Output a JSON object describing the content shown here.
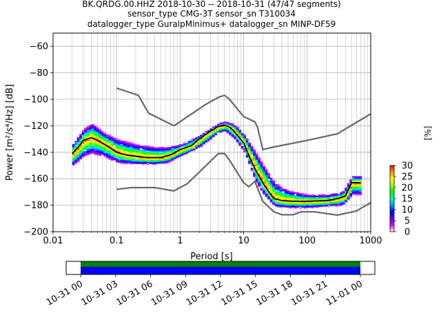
{
  "chart_data": {
    "type": "heatmap",
    "title_lines": [
      "BK.QRDG.00.HHZ   2018-10-30 -- 2018-10-31  (47/47 segments)",
      "sensor_type CMG-3T sensor_sn T310034",
      "datalogger_type GuralpMinimus+ datalogger_sn MINP-DF59"
    ],
    "xlabel": "Period [s]",
    "ylabel": "Power [m²/s⁴/Hz] [dB]",
    "x_scale": "log",
    "xlim": [
      0.01,
      1000
    ],
    "ylim": [
      -200,
      -50
    ],
    "x_ticks": [
      {
        "value": 0.01,
        "label": "0.01"
      },
      {
        "value": 0.1,
        "label": "0.1"
      },
      {
        "value": 1,
        "label": "1"
      },
      {
        "value": 10,
        "label": "10"
      },
      {
        "value": 100,
        "label": "100"
      },
      {
        "value": 1000,
        "label": "1000"
      }
    ],
    "y_ticks": [
      {
        "value": -60,
        "label": "−60"
      },
      {
        "value": -80,
        "label": "−80"
      },
      {
        "value": -100,
        "label": "−100"
      },
      {
        "value": -120,
        "label": "−120"
      },
      {
        "value": -140,
        "label": "−140"
      },
      {
        "value": -160,
        "label": "−160"
      },
      {
        "value": -180,
        "label": "−180"
      },
      {
        "value": -200,
        "label": "−200"
      }
    ],
    "grid": true,
    "noise_models": [
      {
        "points": [
          [
            0.1,
            -91.5
          ],
          [
            0.22,
            -97
          ],
          [
            0.32,
            -110.5
          ],
          [
            0.8,
            -120
          ],
          [
            2.5,
            -104
          ],
          [
            4.0,
            -98.5
          ],
          [
            5.0,
            -97
          ],
          [
            6.0,
            -100
          ],
          [
            7.0,
            -104
          ],
          [
            10.0,
            -113
          ],
          [
            15.0,
            -117
          ],
          [
            16.5,
            -121
          ],
          [
            20.0,
            -138
          ],
          [
            30.0,
            -136
          ],
          [
            100.0,
            -131
          ],
          [
            300.0,
            -126
          ],
          [
            1000.0,
            -111
          ]
        ]
      },
      {
        "points": [
          [
            0.1,
            -168
          ],
          [
            0.17,
            -166.7
          ],
          [
            0.4,
            -166.7
          ],
          [
            0.8,
            -169.2
          ],
          [
            1.3,
            -163.7
          ],
          [
            4.0,
            -141
          ],
          [
            5.0,
            -141
          ],
          [
            6.0,
            -146
          ],
          [
            10.0,
            -163
          ],
          [
            12.0,
            -166
          ],
          [
            15.0,
            -162
          ],
          [
            20.0,
            -177
          ],
          [
            30.0,
            -185
          ],
          [
            40.0,
            -187.2
          ],
          [
            60.0,
            -187.2
          ],
          [
            80.0,
            -185
          ],
          [
            130.0,
            -185
          ],
          [
            300.0,
            -187.5
          ],
          [
            600.0,
            -184.3
          ],
          [
            1000.0,
            -178
          ]
        ]
      }
    ],
    "mode_curve": [
      [
        0.02,
        -141
      ],
      [
        0.025,
        -136
      ],
      [
        0.03,
        -131
      ],
      [
        0.04,
        -129
      ],
      [
        0.05,
        -131
      ],
      [
        0.07,
        -135
      ],
      [
        0.1,
        -140
      ],
      [
        0.14,
        -142
      ],
      [
        0.2,
        -143
      ],
      [
        0.3,
        -144
      ],
      [
        0.5,
        -144
      ],
      [
        0.7,
        -142
      ],
      [
        1.0,
        -138
      ],
      [
        1.5,
        -135
      ],
      [
        2.0,
        -130
      ],
      [
        3.0,
        -124
      ],
      [
        4.0,
        -120.5
      ],
      [
        5.0,
        -119.5
      ],
      [
        6.0,
        -121
      ],
      [
        7.0,
        -124
      ],
      [
        10.0,
        -133
      ],
      [
        13.0,
        -146
      ],
      [
        16.0,
        -155
      ],
      [
        20.0,
        -163
      ],
      [
        25.0,
        -170
      ],
      [
        30.0,
        -175
      ],
      [
        40.0,
        -176.5
      ],
      [
        60.0,
        -177
      ],
      [
        100.0,
        -177
      ],
      [
        200.0,
        -176.5
      ],
      [
        300.0,
        -175
      ],
      [
        400.0,
        -173
      ],
      [
        500.0,
        -163
      ],
      [
        700.0,
        -163
      ]
    ],
    "density_bands": [
      {
        "points": [
          [
            0.02,
            -150,
            -133
          ],
          [
            0.03,
            -143,
            -122
          ],
          [
            0.04,
            -141,
            -118
          ],
          [
            0.06,
            -143,
            -125
          ],
          [
            0.1,
            -148,
            -130
          ],
          [
            0.2,
            -149,
            -134
          ],
          [
            0.4,
            -149,
            -136
          ],
          [
            0.6,
            -148,
            -136
          ],
          [
            1.0,
            -143,
            -134
          ],
          [
            2.0,
            -136,
            -127
          ],
          [
            4.0,
            -125,
            -118
          ],
          [
            5.0,
            -124,
            -117
          ],
          [
            7.0,
            -130,
            -119
          ],
          [
            10.0,
            -140,
            -127
          ],
          [
            15.0,
            -162,
            -140
          ],
          [
            20.0,
            -172,
            -150
          ],
          [
            30.0,
            -181,
            -163
          ],
          [
            50.0,
            -182,
            -169
          ],
          [
            100.0,
            -182,
            -172
          ],
          [
            200.0,
            -181,
            -172
          ],
          [
            350.0,
            -180,
            -170
          ],
          [
            500.0,
            -172,
            -158
          ],
          [
            700.0,
            -172,
            -158
          ]
        ]
      }
    ],
    "colorbar": {
      "label": "[%]",
      "min": 0,
      "max": 30,
      "ticks": [
        {
          "value": 0,
          "label": "0"
        },
        {
          "value": 5,
          "label": "5"
        },
        {
          "value": 10,
          "label": "10"
        },
        {
          "value": 15,
          "label": "15"
        },
        {
          "value": 20,
          "label": "20"
        },
        {
          "value": 25,
          "label": "25"
        },
        {
          "value": 30,
          "label": "30"
        }
      ],
      "colors": [
        "#ffffff",
        "#e000ff",
        "#6400ff",
        "#0000ff",
        "#00a0ff",
        "#00ffc8",
        "#00ff00",
        "#a0ff00",
        "#ffff00",
        "#ff9600",
        "#ff0000"
      ]
    },
    "timeline": {
      "ticks": [
        "10-31 00",
        "10-31 03",
        "10-31 06",
        "10-31 09",
        "10-31 12",
        "10-31 15",
        "10-31 18",
        "10-31 21",
        "11-01 00"
      ],
      "coverage": [
        {
          "start_hour": 0,
          "end_hour": 24
        }
      ],
      "total_hours": 24,
      "colors": {
        "data": "#0000ff",
        "gap_free": "#008000"
      }
    }
  }
}
